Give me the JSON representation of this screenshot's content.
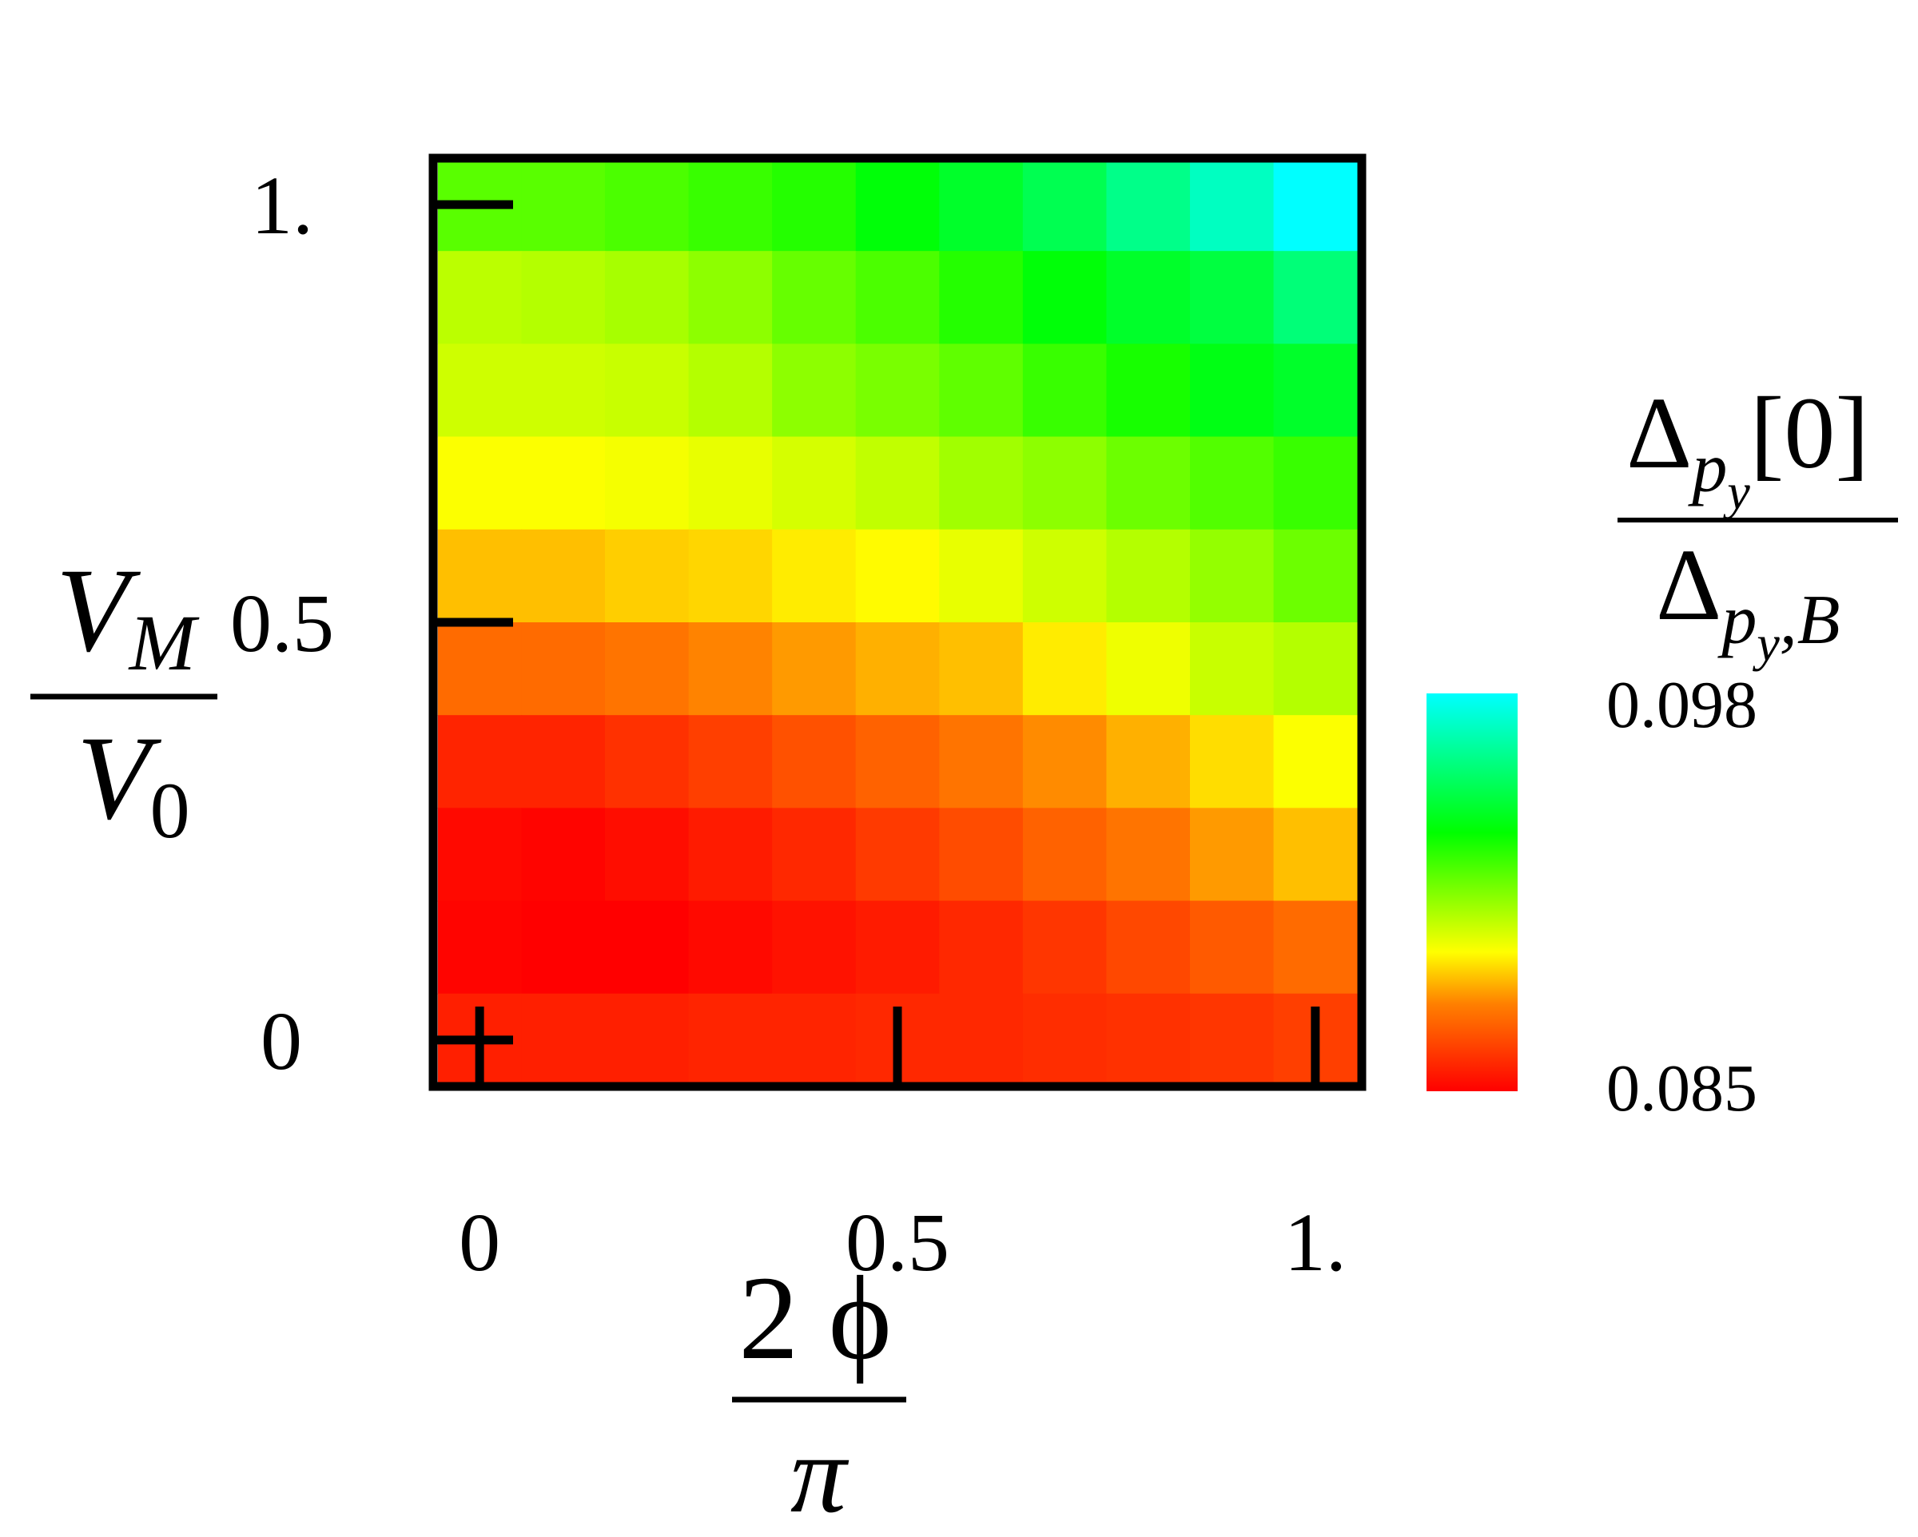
{
  "chart_data": {
    "type": "heatmap",
    "x": {
      "label_top": "2 ϕ",
      "label_bottom": "π",
      "range": [
        -0.0556,
        1.0556
      ],
      "ticks": [
        0,
        0.5,
        1
      ],
      "tick_labels": [
        "0",
        "0.5",
        "1."
      ],
      "cell_centers": [
        0,
        0.1,
        0.2,
        0.3,
        0.4,
        0.5,
        0.6,
        0.7,
        0.8,
        0.9,
        1.0
      ]
    },
    "y": {
      "label_top": "V",
      "label_top_sub": "M",
      "label_bottom": "V",
      "label_bottom_sub": "0",
      "range": [
        -0.0556,
        1.0556
      ],
      "ticks": [
        0,
        0.5,
        1
      ],
      "tick_labels": [
        "0",
        "0.5",
        "1."
      ],
      "cell_centers": [
        0,
        0.1111,
        0.2222,
        0.3333,
        0.4444,
        0.5556,
        0.6667,
        0.7778,
        0.8889,
        1.0
      ]
    },
    "z_rows_top_to_bottom": [
      [
        0.0921,
        0.0921,
        0.0923,
        0.0926,
        0.0929,
        0.0936,
        0.0942,
        0.0949,
        0.0959,
        0.0969,
        0.098
      ],
      [
        0.0906,
        0.0907,
        0.0909,
        0.0913,
        0.0919,
        0.0923,
        0.0929,
        0.0936,
        0.0942,
        0.0946,
        0.0956
      ],
      [
        0.0903,
        0.0903,
        0.0904,
        0.0907,
        0.0913,
        0.0916,
        0.092,
        0.0926,
        0.0931,
        0.0938,
        0.0942
      ],
      [
        0.0896,
        0.0896,
        0.0897,
        0.0899,
        0.0902,
        0.0905,
        0.091,
        0.0913,
        0.0918,
        0.0922,
        0.0926
      ],
      [
        0.0887,
        0.0887,
        0.0889,
        0.089,
        0.0893,
        0.0895,
        0.0899,
        0.0903,
        0.0907,
        0.0912,
        0.0918
      ],
      [
        0.0874,
        0.0874,
        0.0876,
        0.0879,
        0.0882,
        0.0885,
        0.0887,
        0.0893,
        0.0898,
        0.0904,
        0.0907
      ],
      [
        0.0858,
        0.0858,
        0.0861,
        0.0864,
        0.0868,
        0.0872,
        0.0876,
        0.088,
        0.0885,
        0.0891,
        0.0896
      ],
      [
        0.0852,
        0.0851,
        0.0853,
        0.0856,
        0.0859,
        0.0863,
        0.0867,
        0.0872,
        0.0876,
        0.0882,
        0.0887
      ],
      [
        0.0851,
        0.085,
        0.085,
        0.0852,
        0.0854,
        0.0856,
        0.0859,
        0.0862,
        0.0866,
        0.087,
        0.0874
      ],
      [
        0.0857,
        0.0857,
        0.0857,
        0.0858,
        0.0858,
        0.0859,
        0.0859,
        0.086,
        0.0861,
        0.0862,
        0.0864
      ]
    ],
    "colorbar": {
      "label_num_main": "Δ",
      "label_num_sub": "p",
      "label_num_subsub": "y",
      "label_num_tail": "[0]",
      "label_den_main": "Δ",
      "label_den_sub": "p",
      "label_den_subsub": "y",
      "label_den_tail": ",B",
      "min": 0.085,
      "max": 0.098,
      "min_label": "0.085",
      "max_label": "0.098",
      "colormap": "red-orange-yellow-green-cyan"
    },
    "grid": false
  }
}
